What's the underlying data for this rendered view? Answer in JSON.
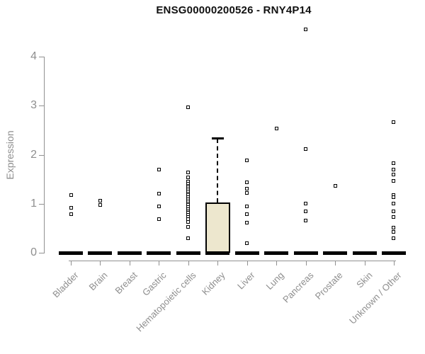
{
  "chart_data": {
    "type": "boxplot",
    "title": "ENSG00000200526 - RNY4P14",
    "xlabel": "",
    "ylabel": "Expression",
    "yticks": [
      0,
      1,
      2,
      3,
      4
    ],
    "ylim": [
      0,
      4.6
    ],
    "grid": false,
    "legend": "none",
    "colors": {
      "box_fill": "#EDE7CE",
      "box_border": "#000000",
      "point": "#000000",
      "zero_bar": "#000000",
      "axis": "#919191",
      "axis_text": "#8e8e8e",
      "title_text": "#111111"
    },
    "categories": [
      {
        "label": "Bladder",
        "box": {
          "lo": 0,
          "q1": 0,
          "median": 0,
          "q3": 0,
          "hi": 0
        },
        "points": [
          1.18,
          0.91,
          0.79
        ]
      },
      {
        "label": "Brain",
        "box": {
          "lo": 0,
          "q1": 0,
          "median": 0,
          "q3": 0,
          "hi": 0
        },
        "points": [
          1.06,
          0.97
        ]
      },
      {
        "label": "Breast",
        "box": {
          "lo": 0,
          "q1": 0,
          "median": 0,
          "q3": 0,
          "hi": 0
        },
        "points": []
      },
      {
        "label": "Gastric",
        "box": {
          "lo": 0,
          "q1": 0,
          "median": 0,
          "q3": 0,
          "hi": 0
        },
        "points": [
          1.69,
          1.21,
          0.95,
          0.69
        ]
      },
      {
        "label": "Hematopoietic cells",
        "box": {
          "lo": 0,
          "q1": 0,
          "median": 0,
          "q3": 0,
          "hi": 0
        },
        "points": [
          2.97,
          1.64,
          1.54,
          1.45,
          1.41,
          1.37,
          1.33,
          1.29,
          1.25,
          1.21,
          1.17,
          1.13,
          1.09,
          1.05,
          1.01,
          0.97,
          0.93,
          0.89,
          0.85,
          0.81,
          0.77,
          0.73,
          0.69,
          0.63,
          0.53,
          0.29
        ]
      },
      {
        "label": "Kidney",
        "box": {
          "lo": 0,
          "q1": 0,
          "median": 0,
          "q3": 1.03,
          "hi": 2.32
        },
        "points": []
      },
      {
        "label": "Liver",
        "box": {
          "lo": 0,
          "q1": 0,
          "median": 0,
          "q3": 0,
          "hi": 0
        },
        "points": [
          1.88,
          1.43,
          1.3,
          1.22,
          0.95,
          0.78,
          0.62,
          0.2
        ]
      },
      {
        "label": "Lung",
        "box": {
          "lo": 0,
          "q1": 0,
          "median": 0,
          "q3": 0,
          "hi": 0
        },
        "points": [
          2.53
        ]
      },
      {
        "label": "Pancreas",
        "box": {
          "lo": 0,
          "q1": 0,
          "median": 0,
          "q3": 0,
          "hi": 0
        },
        "points": [
          4.55,
          2.12,
          1.0,
          0.85,
          0.66
        ]
      },
      {
        "label": "Prostate",
        "box": {
          "lo": 0,
          "q1": 0,
          "median": 0,
          "q3": 0,
          "hi": 0
        },
        "points": [
          1.36
        ]
      },
      {
        "label": "Skin",
        "box": {
          "lo": 0,
          "q1": 0,
          "median": 0,
          "q3": 0,
          "hi": 0
        },
        "points": []
      },
      {
        "label": "Unknown / Other",
        "box": {
          "lo": 0,
          "q1": 0,
          "median": 0,
          "q3": 0,
          "hi": 0
        },
        "points": [
          2.67,
          1.82,
          1.69,
          1.59,
          1.46,
          1.17,
          1.13,
          1.01,
          0.84,
          0.73,
          0.51,
          0.42,
          0.29
        ]
      }
    ]
  }
}
